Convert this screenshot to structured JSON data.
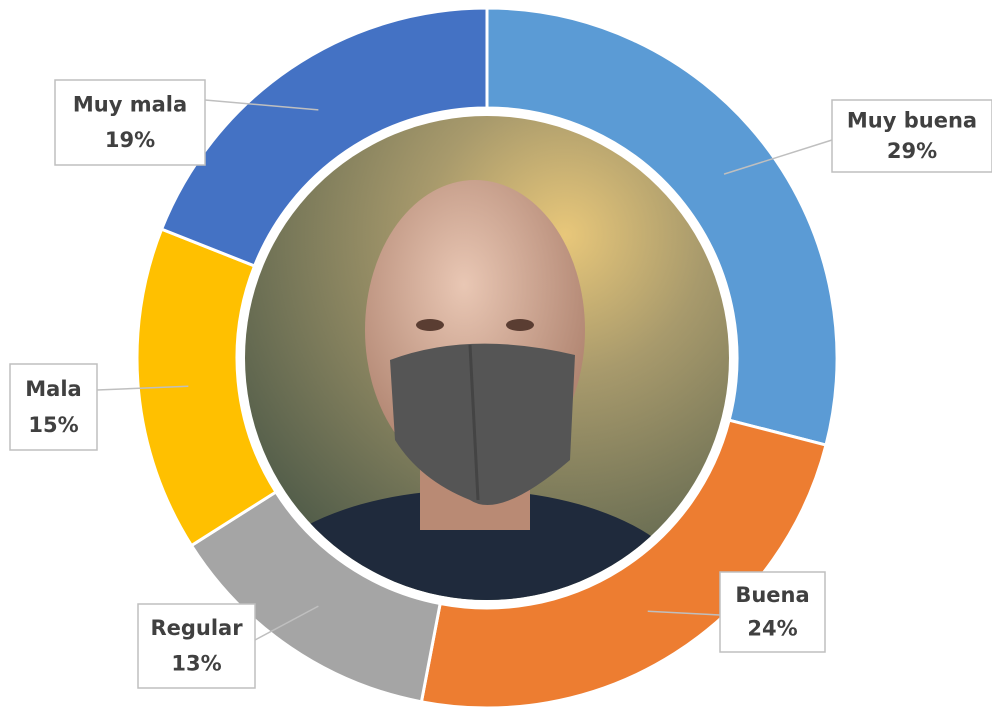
{
  "chart_data": {
    "type": "donut",
    "categories": [
      "Muy buena",
      "Buena",
      "Regular",
      "Mala",
      "Muy mala"
    ],
    "values": [
      29,
      24,
      13,
      15,
      19
    ],
    "value_labels": [
      "29%",
      "24%",
      "13%",
      "15%",
      "19%"
    ],
    "colors": [
      "#5b9bd5",
      "#ed7d31",
      "#a5a5a5",
      "#ffc000",
      "#4472c4"
    ]
  }
}
